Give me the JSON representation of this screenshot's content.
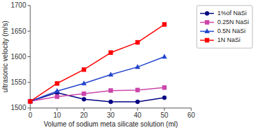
{
  "chart_data": {
    "type": "line",
    "x": [
      0,
      10,
      20,
      30,
      40,
      50
    ],
    "series": [
      {
        "name": "1%of NaSi",
        "color": "#000080",
        "marker": "circle",
        "line_style": "solid",
        "values": [
          1513,
          1530,
          1517,
          1512,
          1512,
          1520
        ]
      },
      {
        "name": "0.25N NaSi",
        "color": "#CC44AA",
        "marker": "square",
        "line_style": "solid",
        "values": [
          1513,
          1522,
          1528,
          1534,
          1535,
          1540
        ]
      },
      {
        "name": "0.5N NaSi",
        "color": "#2244CC",
        "marker": "triangle",
        "line_style": "solid",
        "values": [
          1513,
          1533,
          1548,
          1565,
          1580,
          1600
        ]
      },
      {
        "name": "1N NaSi",
        "color": "#FF0000",
        "marker": "square",
        "line_style": "solid",
        "values": [
          1513,
          1548,
          1575,
          1608,
          1628,
          1663
        ]
      }
    ],
    "xlabel": "Volume of sodium meta silicate solution (ml)",
    "ylabel": "ultrasonic velocity (m/s)",
    "xlim": [
      0,
      60
    ],
    "ylim": [
      1500,
      1700
    ],
    "xticks": [
      0,
      10,
      20,
      30,
      40,
      50,
      60
    ],
    "yticks": [
      1500,
      1550,
      1600,
      1650,
      1700
    ],
    "grid": false,
    "legend": "right"
  }
}
